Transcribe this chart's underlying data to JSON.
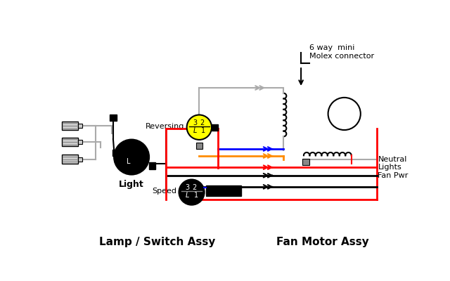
{
  "bg_color": "#ffffff",
  "title_left": "Lamp / Switch Assy",
  "title_right": "Fan Motor Assy",
  "label_reversing": "Reversing",
  "label_speed": "Speed",
  "label_light": "Light",
  "label_neutral": "Neutral",
  "label_lights": "Lights",
  "label_fanpwr": "Fan Pwr",
  "label_molex": "6 way  mini\nMolex connector",
  "colors": {
    "gray": "#aaaaaa",
    "dgray": "#888888",
    "blue": "#0000ff",
    "orange": "#ff8c00",
    "red": "#ff0000",
    "black": "#000000",
    "yellow": "#ffff00",
    "white": "#ffffff"
  }
}
